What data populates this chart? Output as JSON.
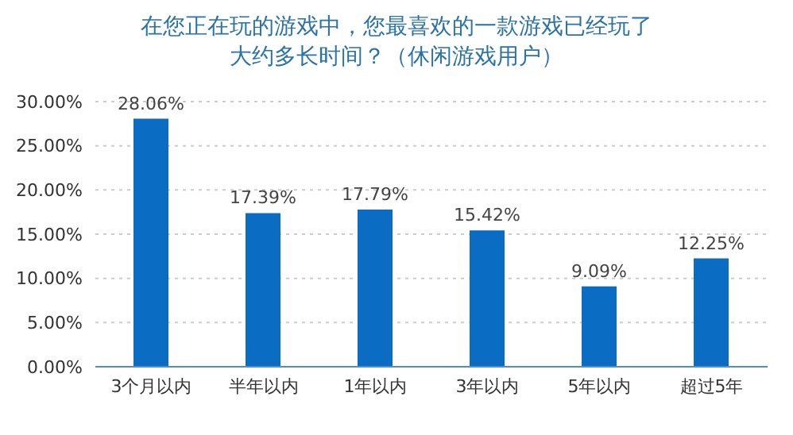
{
  "chart_data": {
    "type": "bar",
    "title": "在您正在玩的游戏中，您最喜欢的一款游戏已经玩了大约多长时间？（休闲游戏用户）",
    "categories": [
      "3个月以内",
      "半年以内",
      "1年以内",
      "3年以内",
      "5年以内",
      "超过5年"
    ],
    "values": [
      28.06,
      17.39,
      17.79,
      15.42,
      9.09,
      12.25
    ],
    "value_labels": [
      "28.06%",
      "17.39%",
      "17.79%",
      "15.42%",
      "9.09%",
      "12.25%"
    ],
    "color": "#0b6cc4",
    "ylim": [
      0,
      30
    ],
    "yticks": [
      {
        "value": 0,
        "label": "0.00%"
      },
      {
        "value": 5,
        "label": "5.00%"
      },
      {
        "value": 10,
        "label": "10.00%"
      },
      {
        "value": 15,
        "label": "15.00%"
      },
      {
        "value": 20,
        "label": "20.00%"
      },
      {
        "value": 25,
        "label": "25.00%"
      },
      {
        "value": 30,
        "label": "30.00%"
      }
    ],
    "grid": "y"
  }
}
